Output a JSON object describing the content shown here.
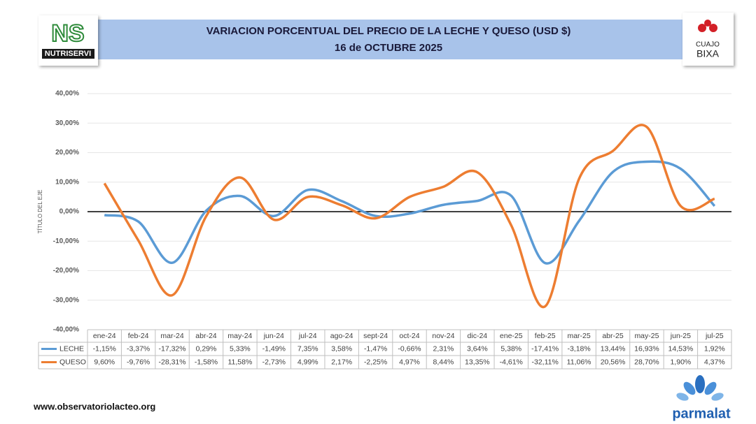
{
  "chart_data": {
    "type": "line",
    "title": "VARIACION PORCENTUAL DEL PRECIO DE LA LECHE Y QUESO (USD $)",
    "subtitle": "16 de OCTUBRE 2025",
    "y_label": "TÍTULO DEL EJE",
    "categories": [
      "ene-24",
      "feb-24",
      "mar-24",
      "abr-24",
      "may-24",
      "jun-24",
      "jul-24",
      "ago-24",
      "sept-24",
      "oct-24",
      "nov-24",
      "dic-24",
      "ene-25",
      "feb-25",
      "mar-25",
      "abr-25",
      "may-25",
      "jun-25",
      "jul-25"
    ],
    "series": [
      {
        "name": "LECHE",
        "color": "#5b9bd5",
        "values": [
          -1.15,
          -3.37,
          -17.32,
          0.29,
          5.33,
          -1.49,
          7.35,
          3.58,
          -1.47,
          -0.66,
          2.31,
          3.64,
          5.38,
          -17.41,
          -3.18,
          13.44,
          16.93,
          14.53,
          1.92
        ],
        "value_labels": [
          "-1,15%",
          "-3,37%",
          "-17,32%",
          "0,29%",
          "5,33%",
          "-1,49%",
          "7,35%",
          "3,58%",
          "-1,47%",
          "-0,66%",
          "2,31%",
          "3,64%",
          "5,38%",
          "-17,41%",
          "-3,18%",
          "13,44%",
          "16,93%",
          "14,53%",
          "1,92%"
        ]
      },
      {
        "name": "QUESO",
        "color": "#ed7d31",
        "values": [
          9.6,
          -9.76,
          -28.31,
          -1.58,
          11.58,
          -2.73,
          4.99,
          2.17,
          -2.25,
          4.97,
          8.44,
          13.35,
          -4.61,
          -32.11,
          11.06,
          20.56,
          28.7,
          1.9,
          4.37
        ],
        "value_labels": [
          "9,60%",
          "-9,76%",
          "-28,31%",
          "-1,58%",
          "11,58%",
          "-2,73%",
          "4,99%",
          "2,17%",
          "-2,25%",
          "4,97%",
          "8,44%",
          "13,35%",
          "-4,61%",
          "-32,11%",
          "11,06%",
          "20,56%",
          "28,70%",
          "1,90%",
          "4,37%"
        ]
      }
    ],
    "ylim": [
      -40,
      40
    ],
    "yticks": [
      {
        "value": -40,
        "label": "-40,00%"
      },
      {
        "value": -30,
        "label": "-30,00%"
      },
      {
        "value": -20,
        "label": "-20,00%"
      },
      {
        "value": -10,
        "label": "-10,00%"
      },
      {
        "value": 0,
        "label": "0,00%"
      },
      {
        "value": 10,
        "label": "10,00%"
      },
      {
        "value": 20,
        "label": "20,00%"
      },
      {
        "value": 30,
        "label": "30,00%"
      },
      {
        "value": 40,
        "label": "40,00%"
      }
    ],
    "grid": true
  },
  "logos": {
    "left_mark": "NS",
    "left_name": "NUTRISERVI",
    "right_top": "CUAJO",
    "right_bottom": "BIXA",
    "bottom_right": "parmalat"
  },
  "footer": {
    "website": "www.observatoriolacteo.org"
  }
}
